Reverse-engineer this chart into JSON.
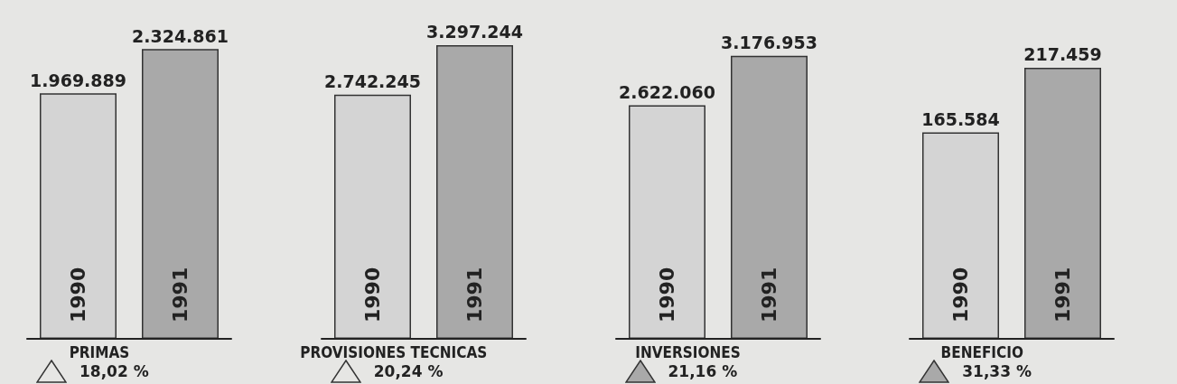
{
  "chart_data": [
    {
      "type": "bar",
      "title": "PRIMAS",
      "categories": [
        "1990",
        "1991"
      ],
      "values": [
        1969889,
        2324861
      ],
      "value_labels": [
        "1.969.889",
        "2.324.861"
      ],
      "colors": [
        "#d4d4d4",
        "#a9a9a9"
      ],
      "annotations": [
        "18,02 %"
      ]
    },
    {
      "type": "bar",
      "title": "PROVISIONES TECNICAS",
      "categories": [
        "1990",
        "1991"
      ],
      "values": [
        2742245,
        3297244
      ],
      "value_labels": [
        "2.742.245",
        "3.297.244"
      ],
      "colors": [
        "#d4d4d4",
        "#a9a9a9"
      ],
      "annotations": [
        "20,24 %"
      ]
    },
    {
      "type": "bar",
      "title": "INVERSIONES",
      "categories": [
        "1990",
        "1991"
      ],
      "values": [
        2622060,
        3176953
      ],
      "value_labels": [
        "2.622.060",
        "3.176.953"
      ],
      "colors": [
        "#d4d4d4",
        "#a9a9a9"
      ],
      "annotations": [
        "21,16 %"
      ]
    },
    {
      "type": "bar",
      "title": "BENEFICIO",
      "categories": [
        "1990",
        "1991"
      ],
      "values": [
        165584,
        217459
      ],
      "value_labels": [
        "165.584",
        "217.459"
      ],
      "colors": [
        "#d4d4d4",
        "#a9a9a9"
      ],
      "annotations": [
        "31,33 %"
      ]
    }
  ]
}
